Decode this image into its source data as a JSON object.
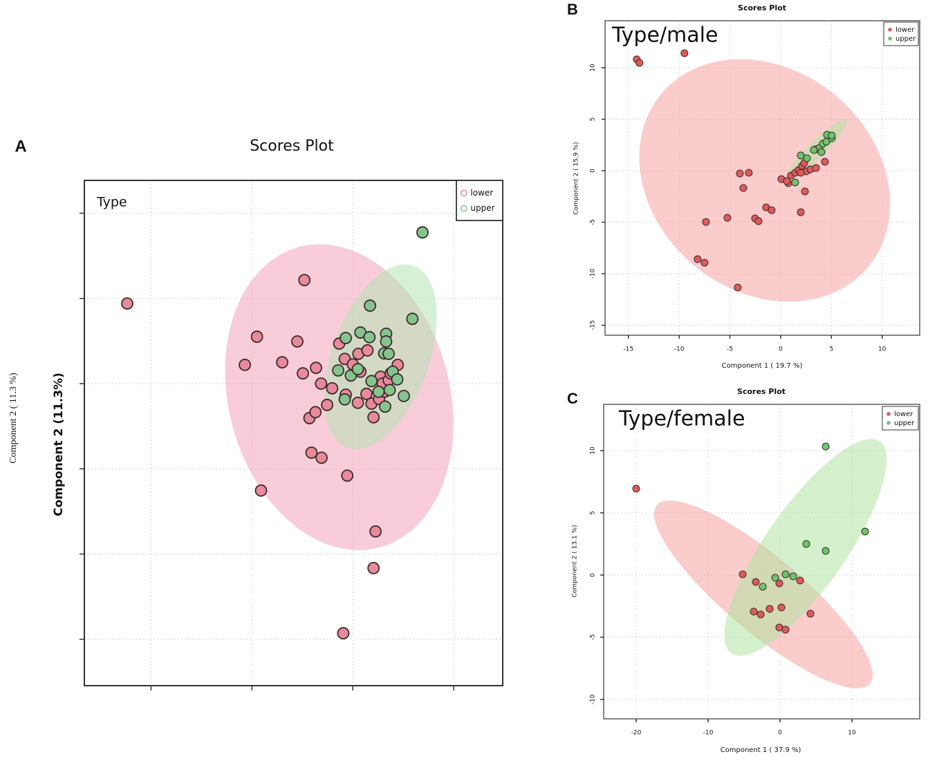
{
  "chart_data": [
    {
      "type": "scatter",
      "panel": "A",
      "title": "Scores Plot",
      "annotation": "Type",
      "ylabel": "Component 2 (11.3%)",
      "ylabel_shadow": "Component 2 ( 11.3 %)",
      "xlim": [
        -5.32,
        2.97
      ],
      "ylim": [
        -7.09,
        4.77
      ],
      "xticks": [
        -4,
        -2,
        0,
        2
      ],
      "yticks": [
        4,
        2,
        0,
        -2,
        -4,
        -6
      ],
      "tick_labels": false,
      "grid": true,
      "legend": "upper right",
      "legend_marker": "ring",
      "series": [
        {
          "name": "lower",
          "color": "#e8899c",
          "ellipse_color": "#f2a3b8",
          "x": [
            -4.47,
            -0.96,
            -1.9,
            -2.14,
            -1.4,
            -1.1,
            -0.99,
            -0.73,
            -0.63,
            -0.86,
            -0.74,
            -0.51,
            -0.41,
            -0.27,
            -0.16,
            0,
            0.11,
            0.29,
            -0.14,
            0.1,
            0.15,
            0.27,
            0.37,
            0.52,
            0.63,
            0.41,
            0.55,
            0.59,
            0.71,
            0.75,
            0.89,
            -0.82,
            -0.62,
            -0.11,
            -1.82,
            0.45,
            0.41,
            -0.19
          ],
          "y": [
            1.88,
            2.43,
            1.1,
            0.44,
            0.5,
            0.99,
            0.24,
            0.37,
            0,
            -0.81,
            -0.67,
            -0.5,
            -0.11,
            0.94,
            0.58,
            0.45,
            0.7,
            0.78,
            -0.26,
            -0.45,
            0.28,
            -0.24,
            -0.47,
            -0.36,
            -0.19,
            -0.79,
            0.16,
            0,
            0.08,
            0.24,
            0.44,
            -1.62,
            -1.74,
            -2.16,
            -2.51,
            -3.47,
            -4.33,
            -5.86
          ],
          "ellipse": {
            "cx": -0.27,
            "cy": -0.32,
            "rx": 2.19,
            "ry": 3.65,
            "angle": -15
          }
        },
        {
          "name": "upper",
          "color": "#86c48e",
          "ellipse_color": "#b5e3b5",
          "x": [
            1.38,
            0.34,
            1.18,
            -0.14,
            0.15,
            0.33,
            0.66,
            0.66,
            -0.29,
            -0.04,
            0.1,
            0.62,
            0.71,
            0.37,
            0.51,
            0.73,
            0.79,
            0.88,
            1.01,
            0.64,
            -0.16
          ],
          "y": [
            3.55,
            1.83,
            1.52,
            1.07,
            1.2,
            1.09,
            1.17,
            0.99,
            0.31,
            0.19,
            0.34,
            0.71,
            0.7,
            0.06,
            -0.19,
            -0.15,
            0.28,
            0.1,
            -0.29,
            -0.54,
            -0.37
          ],
          "ellipse": {
            "cx": 0.55,
            "cy": 0.63,
            "rx": 0.96,
            "ry": 2.27,
            "angle": 20
          }
        }
      ]
    },
    {
      "type": "scatter",
      "panel": "B",
      "title": "Scores Plot",
      "annotation": "Type/male",
      "xlabel": "Component 1 ( 19.7 %)",
      "ylabel": "Component 2 ( 15.9 %)",
      "xlim": [
        -17.3,
        13.7
      ],
      "ylim": [
        -15.97,
        14.56
      ],
      "xticks": [
        -15,
        -10,
        -5,
        0,
        5,
        10
      ],
      "yticks": [
        10,
        5,
        0,
        -5,
        -10,
        -15
      ],
      "tick_labels": true,
      "grid": true,
      "legend": "upper right",
      "legend_marker": "dot",
      "series": [
        {
          "name": "lower",
          "color": "#e05a5a",
          "ellipse_color": "#f7a3a3",
          "x": [
            -14.18,
            -13.91,
            -9.48,
            -4.02,
            -3.14,
            -3.68,
            -7.36,
            -5.25,
            -8.18,
            -7.5,
            -4.23,
            -2.52,
            -2.18,
            -1.43,
            -0.89,
            1.98,
            0.07,
            0.75,
            0.61,
            1.02,
            1.43,
            1.77,
            2.11,
            2.52,
            2.93,
            2.32,
            1.98,
            3.48,
            4.36,
            2.39
          ],
          "y": [
            10.81,
            10.47,
            11.41,
            -0.27,
            -0.2,
            -1.68,
            -4.97,
            -4.56,
            -8.59,
            -8.93,
            -11.34,
            -4.63,
            -4.9,
            -3.56,
            -3.83,
            -4.03,
            -0.81,
            -1.21,
            -1.01,
            -0.47,
            -0.2,
            0.07,
            0.47,
            -0.07,
            0.13,
            0.74,
            -0.2,
            0.27,
            0.87,
            -2.01
          ],
          "ellipse": {
            "cx": -1.57,
            "cy": -0.94,
            "rx": 13.29,
            "ry": 10.74,
            "angle": 40
          }
        },
        {
          "name": "upper",
          "color": "#6cc46c",
          "ellipse_color": "#b3e3a3",
          "x": [
            1.98,
            2.59,
            1.43,
            3.48,
            3.82,
            4.16,
            4.02,
            4.5,
            5.04,
            4.57,
            5.04,
            3.27
          ],
          "y": [
            1.48,
            1.21,
            -1.14,
            2.08,
            2.21,
            2.62,
            1.81,
            2.82,
            3.15,
            3.49,
            3.42,
            2.01
          ],
          "ellipse": {
            "cx": 3.48,
            "cy": 2.01,
            "rx": 4.23,
            "ry": 0.81,
            "angle": -45
          }
        }
      ]
    },
    {
      "type": "scatter",
      "panel": "C",
      "title": "Scores Plot",
      "annotation": "Type/female",
      "xlabel": "Component 1 ( 37.9 %)",
      "ylabel": "Component 2 ( 13.1 %)",
      "xlim": [
        -24.52,
        19.42
      ],
      "ylim": [
        -11.56,
        13.72
      ],
      "xticks": [
        -20,
        -10,
        0,
        10
      ],
      "yticks": [
        10,
        5,
        0,
        -5,
        -10
      ],
      "tick_labels": true,
      "grid": true,
      "legend": "upper right",
      "legend_marker": "dot",
      "series": [
        {
          "name": "lower",
          "color": "#e05a5a",
          "ellipse_color": "#f7a3a3",
          "x": [
            -20,
            -5.19,
            -3.37,
            -0.1,
            2.79,
            -3.65,
            -2.69,
            -1.44,
            0.19,
            4.23,
            -0.1,
            0.77
          ],
          "y": [
            6.94,
            0.06,
            -0.56,
            -0.67,
            -0.44,
            -2.94,
            -3.17,
            -2.72,
            -2.61,
            -3.11,
            -4.22,
            -4.39
          ],
          "ellipse": {
            "cx": -2.31,
            "cy": -1.56,
            "rx": 19.33,
            "ry": 3.06,
            "angle": 40
          }
        },
        {
          "name": "upper",
          "color": "#6cc46c",
          "ellipse_color": "#b3e3a3",
          "x": [
            6.35,
            11.83,
            3.65,
            6.35,
            -2.4,
            -0.67,
            0.77,
            1.83
          ],
          "y": [
            10.33,
            3.5,
            2.5,
            1.94,
            -0.94,
            -0.22,
            0.06,
            -0.11
          ],
          "ellipse": {
            "cx": 3.56,
            "cy": 2.22,
            "rx": 17.98,
            "ry": 3.22,
            "angle": -55
          }
        }
      ]
    }
  ]
}
